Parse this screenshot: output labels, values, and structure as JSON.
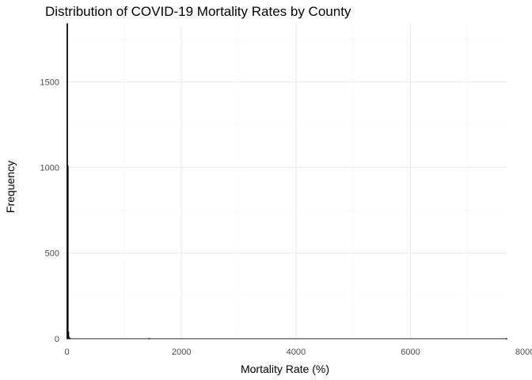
{
  "chart_data": {
    "type": "bar",
    "title": "Distribution of COVID-19 Mortality Rates by County",
    "xlabel": "Mortality Rate (%)",
    "ylabel": "Frequency",
    "xlim": [
      -50,
      7680
    ],
    "ylim": [
      -10,
      1840
    ],
    "x_ticks": [
      0,
      2000,
      4000,
      6000,
      8000
    ],
    "y_ticks": [
      0,
      500,
      1000,
      1500
    ],
    "x_tick_labels": [
      "0",
      "2000",
      "4000",
      "6000",
      "8000"
    ],
    "y_tick_labels": [
      "0",
      "500",
      "1000",
      "1500"
    ],
    "grid": true,
    "legend": "none",
    "bin_width": 10,
    "bins": [
      {
        "x": 0,
        "count": 1840
      },
      {
        "x": 10,
        "count": 1010
      },
      {
        "x": 20,
        "count": 40
      },
      {
        "x": 30,
        "count": 8
      },
      {
        "x": 40,
        "count": 3
      },
      {
        "x": 50,
        "count": 2
      },
      {
        "x": 1430,
        "count": 2
      },
      {
        "x": 7670,
        "count": 1
      }
    ]
  }
}
